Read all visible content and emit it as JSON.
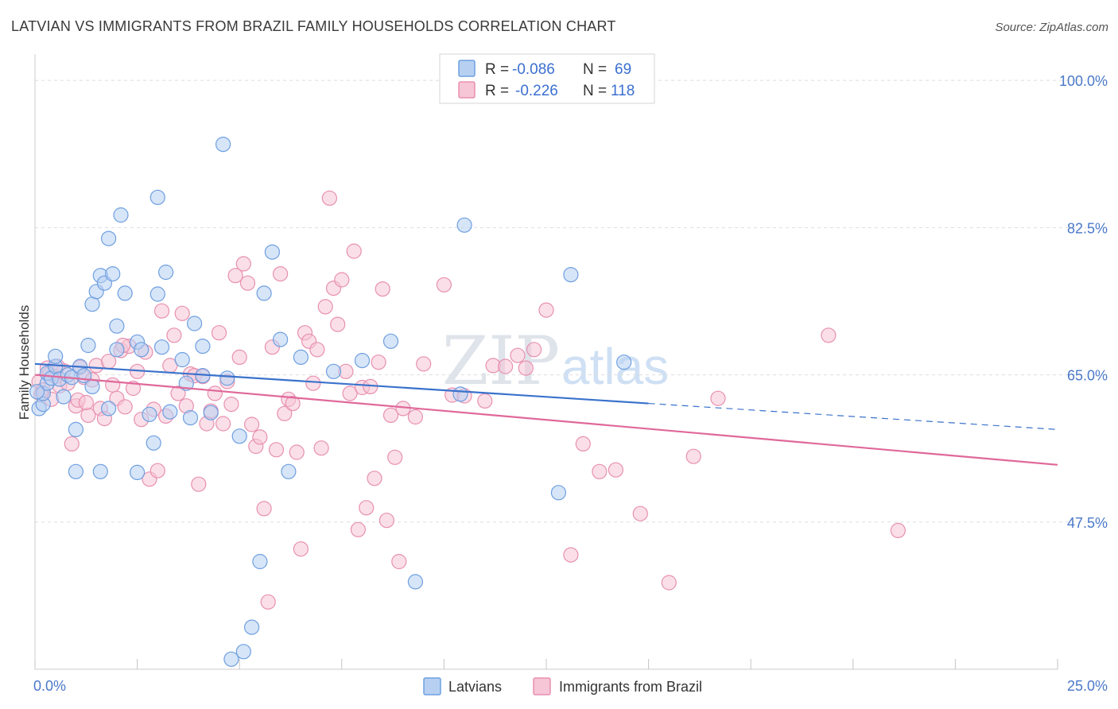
{
  "title": "LATVIAN VS IMMIGRANTS FROM BRAZIL FAMILY HOUSEHOLDS CORRELATION CHART",
  "source": "Source: ZipAtlas.com",
  "watermark": {
    "zip": "ZIP",
    "atlas": "atlas"
  },
  "colors": {
    "blue": "#6e9fe0",
    "blue_fill": "#b7d0f2",
    "blue_line": "#3a72cc",
    "pink": "#e890b0",
    "pink_fill": "#f6c5d6",
    "pink_line": "#e0689a",
    "tick_label": "#4a78c8",
    "grid": "#dddddd"
  },
  "legend_top": [
    {
      "r_label": "R =",
      "r_value": "-0.086",
      "n_label": "N =",
      "n_value": "69"
    },
    {
      "r_label": "R =",
      "r_value": "-0.226",
      "n_label": "N =",
      "n_value": "118"
    }
  ],
  "chart_data": {
    "type": "scatter",
    "title": "LATVIAN VS IMMIGRANTS FROM BRAZIL FAMILY HOUSEHOLDS CORRELATION CHART",
    "xlabel": "",
    "ylabel": "Family Households",
    "xlim": [
      0,
      25
    ],
    "ylim": [
      30,
      102
    ],
    "x_tick_labels": [
      "0.0%",
      "25.0%"
    ],
    "y_ticks": [
      47.5,
      65.0,
      82.5,
      100.0
    ],
    "y_tick_labels": [
      "47.5%",
      "65.0%",
      "82.5%",
      "100.0%"
    ],
    "grid": true,
    "legend_placement": "bottom",
    "series": [
      {
        "name": "Latvians",
        "color": "#6e9fe0",
        "trend": {
          "x_start": 0,
          "y_start": 66.3,
          "x_solid_end": 15,
          "y_solid_end": 61.6,
          "x_end": 25,
          "y_end": 58.5
        },
        "points": [
          [
            0.1,
            61.0
          ],
          [
            0.2,
            61.5
          ],
          [
            0.2,
            62.8
          ],
          [
            0.3,
            64.0
          ],
          [
            0.3,
            65.2
          ],
          [
            0.4,
            64.6
          ],
          [
            0.5,
            66.0
          ],
          [
            0.5,
            67.2
          ],
          [
            0.6,
            64.5
          ],
          [
            0.7,
            62.4
          ],
          [
            0.8,
            65.0
          ],
          [
            0.9,
            64.7
          ],
          [
            1.0,
            58.5
          ],
          [
            1.0,
            53.5
          ],
          [
            1.1,
            66.0
          ],
          [
            1.2,
            64.9
          ],
          [
            1.3,
            68.5
          ],
          [
            1.4,
            63.6
          ],
          [
            1.4,
            73.4
          ],
          [
            1.5,
            74.9
          ],
          [
            1.6,
            53.5
          ],
          [
            1.6,
            76.8
          ],
          [
            1.7,
            75.9
          ],
          [
            1.8,
            81.2
          ],
          [
            1.8,
            61.0
          ],
          [
            1.9,
            77.0
          ],
          [
            2.0,
            70.8
          ],
          [
            2.0,
            68.0
          ],
          [
            2.1,
            84.0
          ],
          [
            2.2,
            74.7
          ],
          [
            2.5,
            53.4
          ],
          [
            2.5,
            68.9
          ],
          [
            2.6,
            68.0
          ],
          [
            2.8,
            60.3
          ],
          [
            2.9,
            56.9
          ],
          [
            3.0,
            86.1
          ],
          [
            3.0,
            74.6
          ],
          [
            3.1,
            68.3
          ],
          [
            3.2,
            77.2
          ],
          [
            3.3,
            60.6
          ],
          [
            3.6,
            66.8
          ],
          [
            3.7,
            64.0
          ],
          [
            3.8,
            59.9
          ],
          [
            3.9,
            71.1
          ],
          [
            4.1,
            68.4
          ],
          [
            4.1,
            64.9
          ],
          [
            4.3,
            60.5
          ],
          [
            4.6,
            92.4
          ],
          [
            4.7,
            64.6
          ],
          [
            4.8,
            31.2
          ],
          [
            5.0,
            57.7
          ],
          [
            5.1,
            32.1
          ],
          [
            5.3,
            35.0
          ],
          [
            5.5,
            42.8
          ],
          [
            5.6,
            74.7
          ],
          [
            5.8,
            79.6
          ],
          [
            6.0,
            69.2
          ],
          [
            6.2,
            53.5
          ],
          [
            6.5,
            67.1
          ],
          [
            7.3,
            65.4
          ],
          [
            8.0,
            66.7
          ],
          [
            8.7,
            69.0
          ],
          [
            9.3,
            40.4
          ],
          [
            10.4,
            62.7
          ],
          [
            10.5,
            82.8
          ],
          [
            12.8,
            51.0
          ],
          [
            13.1,
            76.9
          ],
          [
            14.4,
            66.5
          ],
          [
            0.05,
            63.0
          ]
        ]
      },
      {
        "name": "Immigrants from Brazil",
        "color": "#e890b0",
        "trend": {
          "x_start": 0,
          "y_start": 65.0,
          "x_end": 25,
          "y_end": 54.3
        },
        "points": [
          [
            0.1,
            64.2
          ],
          [
            0.2,
            63.2
          ],
          [
            0.3,
            65.8
          ],
          [
            0.4,
            62.1
          ],
          [
            0.5,
            64.8
          ],
          [
            0.6,
            63.7
          ],
          [
            0.7,
            65.5
          ],
          [
            0.8,
            64.0
          ],
          [
            0.9,
            56.8
          ],
          [
            1.0,
            61.3
          ],
          [
            1.1,
            65.9
          ],
          [
            1.2,
            64.7
          ],
          [
            1.3,
            60.2
          ],
          [
            1.4,
            64.4
          ],
          [
            1.5,
            66.1
          ],
          [
            1.6,
            61.0
          ],
          [
            1.7,
            59.8
          ],
          [
            1.8,
            66.6
          ],
          [
            1.9,
            63.8
          ],
          [
            2.0,
            62.2
          ],
          [
            2.1,
            67.9
          ],
          [
            2.2,
            61.2
          ],
          [
            2.3,
            68.4
          ],
          [
            2.4,
            63.4
          ],
          [
            2.5,
            65.4
          ],
          [
            2.6,
            59.7
          ],
          [
            2.7,
            67.7
          ],
          [
            2.8,
            52.6
          ],
          [
            2.9,
            60.9
          ],
          [
            3.0,
            53.6
          ],
          [
            3.1,
            72.6
          ],
          [
            3.2,
            60.1
          ],
          [
            3.3,
            66.1
          ],
          [
            3.4,
            69.7
          ],
          [
            3.5,
            62.8
          ],
          [
            3.6,
            72.3
          ],
          [
            3.7,
            61.3
          ],
          [
            3.8,
            65.1
          ],
          [
            3.9,
            64.9
          ],
          [
            4.0,
            52.0
          ],
          [
            4.1,
            64.8
          ],
          [
            4.2,
            59.2
          ],
          [
            4.3,
            60.7
          ],
          [
            4.4,
            62.8
          ],
          [
            4.5,
            70.0
          ],
          [
            4.6,
            59.2
          ],
          [
            4.7,
            64.2
          ],
          [
            4.8,
            61.5
          ],
          [
            4.9,
            76.8
          ],
          [
            5.0,
            67.1
          ],
          [
            5.1,
            78.2
          ],
          [
            5.2,
            75.9
          ],
          [
            5.3,
            59.1
          ],
          [
            5.4,
            56.5
          ],
          [
            5.5,
            57.6
          ],
          [
            5.6,
            49.1
          ],
          [
            5.7,
            38.0
          ],
          [
            5.8,
            68.3
          ],
          [
            5.9,
            56.1
          ],
          [
            6.0,
            77.0
          ],
          [
            6.1,
            60.4
          ],
          [
            6.2,
            62.1
          ],
          [
            6.3,
            61.6
          ],
          [
            6.4,
            55.8
          ],
          [
            6.5,
            44.3
          ],
          [
            6.6,
            70.0
          ],
          [
            6.7,
            69.0
          ],
          [
            6.8,
            64.0
          ],
          [
            6.9,
            68.0
          ],
          [
            7.0,
            56.3
          ],
          [
            7.1,
            73.1
          ],
          [
            7.2,
            86.0
          ],
          [
            7.3,
            75.3
          ],
          [
            7.4,
            71.0
          ],
          [
            7.5,
            76.3
          ],
          [
            7.6,
            65.4
          ],
          [
            7.7,
            62.8
          ],
          [
            7.8,
            79.7
          ],
          [
            7.9,
            46.6
          ],
          [
            8.0,
            63.5
          ],
          [
            8.1,
            49.2
          ],
          [
            8.2,
            63.6
          ],
          [
            8.3,
            52.7
          ],
          [
            8.4,
            66.5
          ],
          [
            8.5,
            75.2
          ],
          [
            8.6,
            47.7
          ],
          [
            8.7,
            60.2
          ],
          [
            8.8,
            55.2
          ],
          [
            8.9,
            42.8
          ],
          [
            9.0,
            61.0
          ],
          [
            9.3,
            60.0
          ],
          [
            9.5,
            66.3
          ],
          [
            10.0,
            75.7
          ],
          [
            10.2,
            62.6
          ],
          [
            10.5,
            62.5
          ],
          [
            11.0,
            61.9
          ],
          [
            11.2,
            66.1
          ],
          [
            11.5,
            66.0
          ],
          [
            11.8,
            67.3
          ],
          [
            12.0,
            65.8
          ],
          [
            12.2,
            68.0
          ],
          [
            12.5,
            72.7
          ],
          [
            13.1,
            43.6
          ],
          [
            13.4,
            56.8
          ],
          [
            13.8,
            53.5
          ],
          [
            14.2,
            53.7
          ],
          [
            14.8,
            48.5
          ],
          [
            15.5,
            40.3
          ],
          [
            16.1,
            55.3
          ],
          [
            16.7,
            62.2
          ],
          [
            19.4,
            69.7
          ],
          [
            21.1,
            46.5
          ],
          [
            0.15,
            62.7
          ],
          [
            0.35,
            65.1
          ],
          [
            0.55,
            66.0
          ],
          [
            1.05,
            62.0
          ],
          [
            1.25,
            61.7
          ],
          [
            2.15,
            68.5
          ]
        ]
      }
    ]
  },
  "bottom_legend": [
    {
      "label": "Latvians"
    },
    {
      "label": "Immigrants from Brazil"
    }
  ]
}
